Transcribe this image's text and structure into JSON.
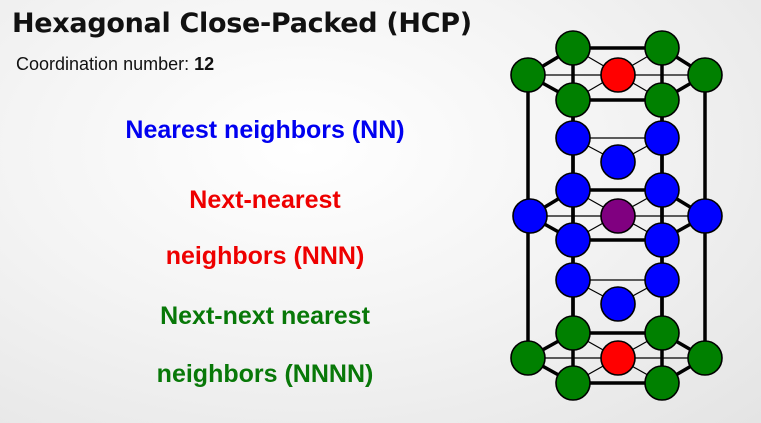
{
  "title": "Hexagonal Close-Packed (HCP)",
  "coordination": {
    "label": "Coordination number:",
    "value": "12"
  },
  "legend": {
    "nn": {
      "text": "Nearest neighbors (NN)",
      "color": "#0000ff"
    },
    "nnn": {
      "line1": "Next-nearest",
      "line2": "neighbors (NNN)",
      "color": "#ff0000"
    },
    "nnnn": {
      "line1": "Next-next nearest",
      "line2": "neighbors (NNNN)",
      "color": "#008000"
    }
  },
  "atom_colors": {
    "center": "#800080",
    "nn": "#0000ff",
    "nnn": "#ff0000",
    "nnnn": "#008000"
  }
}
